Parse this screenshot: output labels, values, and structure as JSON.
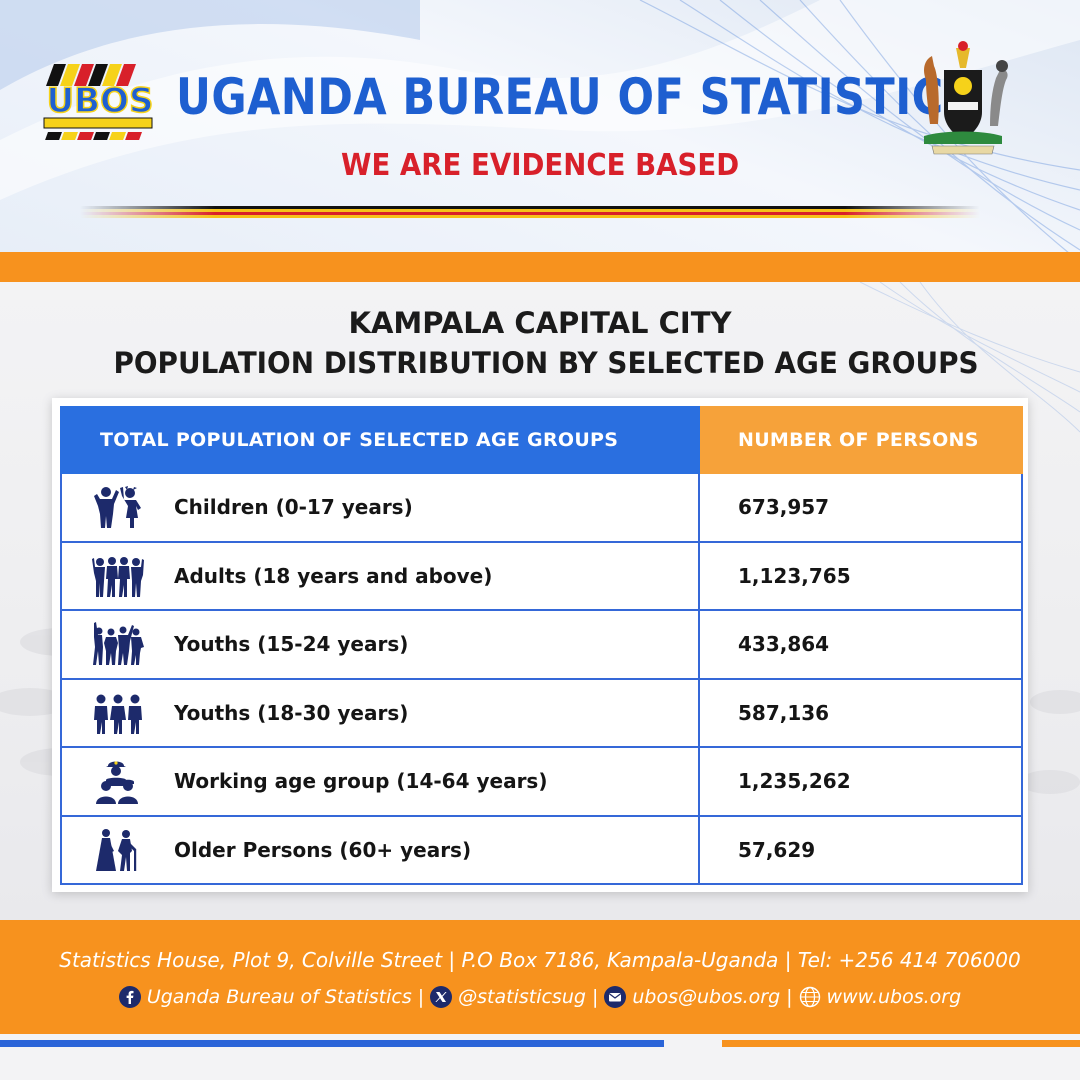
{
  "header": {
    "logo_text": "UBOS",
    "title": "UGANDA BUREAU OF STATISTICS",
    "tagline": "WE ARE EVIDENCE BASED"
  },
  "page": {
    "title_line1": "KAMPALA CAPITAL CITY",
    "title_line2": "POPULATION DISTRIBUTION BY SELECTED AGE GROUPS"
  },
  "table": {
    "headers": [
      "TOTAL POPULATION OF SELECTED AGE GROUPS",
      "NUMBER OF PERSONS"
    ],
    "rows": [
      {
        "icon": "children-icon",
        "label": "Children (0-17 years)",
        "value": "673,957"
      },
      {
        "icon": "adults-icon",
        "label": "Adults (18 years and above)",
        "value": "1,123,765"
      },
      {
        "icon": "youths-dancing-icon",
        "label": "Youths (15-24 years)",
        "value": "433,864"
      },
      {
        "icon": "youths-group-icon",
        "label": "Youths (18-30 years)",
        "value": "587,136"
      },
      {
        "icon": "workers-icon",
        "label": "Working age group (14-64 years)",
        "value": "1,235,262"
      },
      {
        "icon": "older-persons-icon",
        "label": "Older Persons (60+ years)",
        "value": "57,629"
      }
    ]
  },
  "footer": {
    "address": "Statistics House, Plot 9, Colville Street | P.O Box 7186, Kampala-Uganda | Tel: +256 414 706000",
    "facebook": "Uganda Bureau of Statistics",
    "twitter": "@statisticsug",
    "email": "ubos@ubos.org",
    "website": "www.ubos.org",
    "separator": "|"
  },
  "colors": {
    "brand_blue": "#1e5fd0",
    "tagline_red": "#d8202a",
    "accent_orange": "#f7921e",
    "header_cell_orange": "#f6a23a",
    "icon_navy": "#1d2a6b"
  }
}
